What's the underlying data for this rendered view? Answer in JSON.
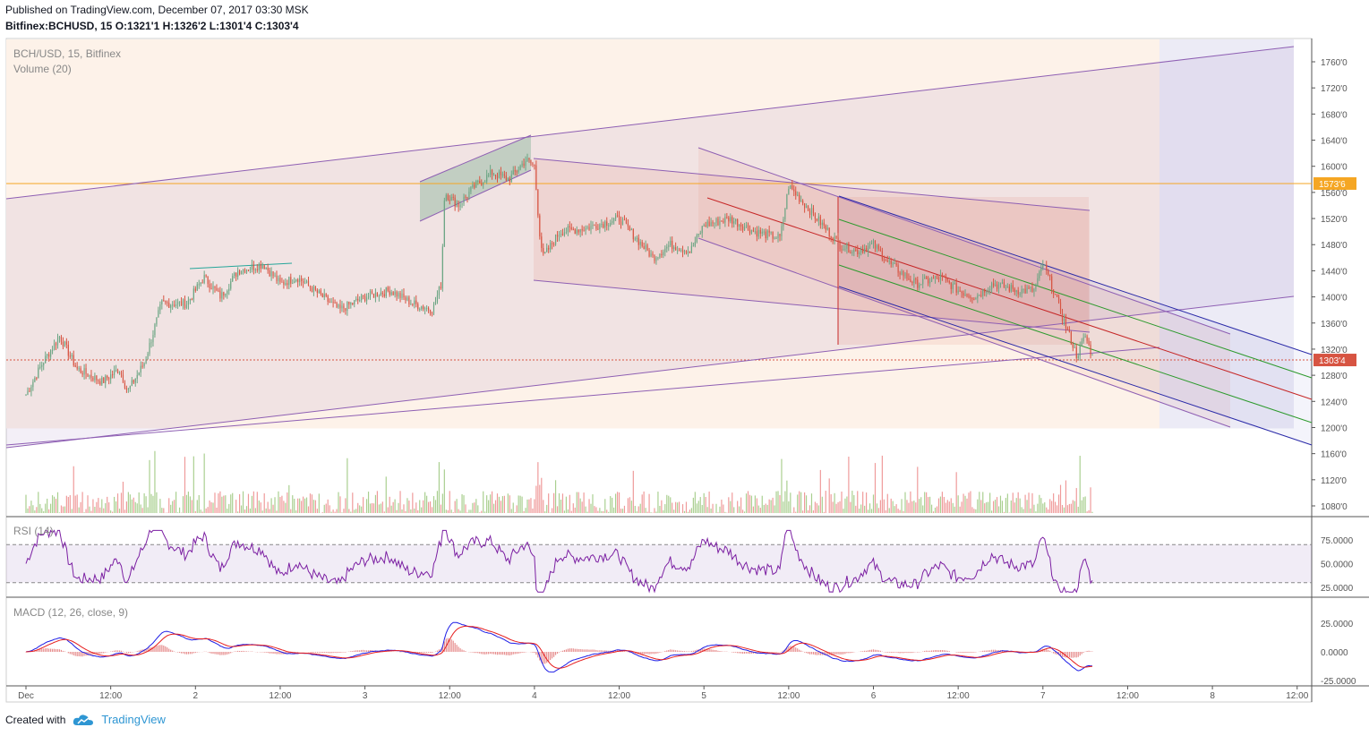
{
  "header": {
    "published": "Published on TradingView.com, December 07, 2017 03:30 MSK",
    "symbol": "Bitfinex:BCHUSD, 15",
    "ohlc": "O:1321'1 H:1326'2 L:1301'4 C:1303'4"
  },
  "legend": {
    "main": "BCH/USD, 15, Bitfinex",
    "volume": "Volume (20)",
    "rsi": "RSI (14)",
    "macd": "MACD (12, 26, close, 9)"
  },
  "footer": {
    "created_with": "Created with",
    "brand": "TradingView",
    "icon": "tradingview-cloud-icon"
  },
  "colors": {
    "up": "#6ba583",
    "down": "#d75442",
    "upVol": "#a9cf8f",
    "downVol": "#ef9a9a",
    "channel": "#8e5fb3",
    "orange": "#f5a623",
    "blueLine": "#2a2aa8",
    "redLine": "#c62828",
    "greenLine": "#2e9a2e",
    "rsi": "#7b1fa2",
    "macdFast": "#1e1ee6",
    "macdSignal": "#e61e1e"
  },
  "chart_data": [
    {
      "type": "candlestick",
      "title": "BCH/USD, 15, Bitfinex",
      "x_ticks": [
        "Dec",
        "12:00",
        "2",
        "12:00",
        "3",
        "12:00",
        "4",
        "12:00",
        "5",
        "12:00",
        "6",
        "12:00",
        "7",
        "12:00",
        "8",
        "12:00"
      ],
      "y_ticks": [
        "1760'0",
        "1720'0",
        "1680'0",
        "1640'0",
        "1600'0",
        "1560'0",
        "1520'0",
        "1480'0",
        "1440'0",
        "1400'0",
        "1360'0",
        "1320'0",
        "1280'0",
        "1240'0",
        "1200'0",
        "1160'0",
        "1120'0",
        "1080'0"
      ],
      "ylim": [
        1060,
        1780
      ],
      "price_labels": {
        "horizontal_level": "1573'6",
        "last_price": "1303'4"
      },
      "horizontal_level": 1573.6,
      "last_price": 1303.4,
      "anchors": [
        {
          "day": 0.0,
          "price": 1250
        },
        {
          "day": 0.1,
          "price": 1300
        },
        {
          "day": 0.2,
          "price": 1340
        },
        {
          "day": 0.3,
          "price": 1290
        },
        {
          "day": 0.45,
          "price": 1270
        },
        {
          "day": 0.55,
          "price": 1290
        },
        {
          "day": 0.6,
          "price": 1255
        },
        {
          "day": 0.7,
          "price": 1300
        },
        {
          "day": 0.8,
          "price": 1390
        },
        {
          "day": 0.95,
          "price": 1390
        },
        {
          "day": 1.05,
          "price": 1430
        },
        {
          "day": 1.15,
          "price": 1400
        },
        {
          "day": 1.25,
          "price": 1440
        },
        {
          "day": 1.4,
          "price": 1450
        },
        {
          "day": 1.5,
          "price": 1420
        },
        {
          "day": 1.6,
          "price": 1430
        },
        {
          "day": 1.7,
          "price": 1410
        },
        {
          "day": 1.85,
          "price": 1380
        },
        {
          "day": 2.0,
          "price": 1400
        },
        {
          "day": 2.15,
          "price": 1410
        },
        {
          "day": 2.28,
          "price": 1390
        },
        {
          "day": 2.4,
          "price": 1380
        },
        {
          "day": 2.45,
          "price": 1420
        },
        {
          "day": 2.47,
          "price": 1560
        },
        {
          "day": 2.55,
          "price": 1540
        },
        {
          "day": 2.65,
          "price": 1570
        },
        {
          "day": 2.75,
          "price": 1590
        },
        {
          "day": 2.85,
          "price": 1580
        },
        {
          "day": 2.95,
          "price": 1610
        },
        {
          "day": 3.0,
          "price": 1600
        },
        {
          "day": 3.03,
          "price": 1500
        },
        {
          "day": 3.05,
          "price": 1460
        },
        {
          "day": 3.15,
          "price": 1500
        },
        {
          "day": 3.3,
          "price": 1505
        },
        {
          "day": 3.5,
          "price": 1520
        },
        {
          "day": 3.6,
          "price": 1490
        },
        {
          "day": 3.7,
          "price": 1460
        },
        {
          "day": 3.8,
          "price": 1480
        },
        {
          "day": 3.92,
          "price": 1470
        },
        {
          "day": 4.0,
          "price": 1510
        },
        {
          "day": 4.15,
          "price": 1520
        },
        {
          "day": 4.3,
          "price": 1500
        },
        {
          "day": 4.45,
          "price": 1490
        },
        {
          "day": 4.5,
          "price": 1570
        },
        {
          "day": 4.6,
          "price": 1540
        },
        {
          "day": 4.7,
          "price": 1510
        },
        {
          "day": 4.8,
          "price": 1480
        },
        {
          "day": 4.9,
          "price": 1470
        },
        {
          "day": 5.0,
          "price": 1480
        },
        {
          "day": 5.1,
          "price": 1450
        },
        {
          "day": 5.25,
          "price": 1420
        },
        {
          "day": 5.4,
          "price": 1430
        },
        {
          "day": 5.5,
          "price": 1410
        },
        {
          "day": 5.6,
          "price": 1400
        },
        {
          "day": 5.7,
          "price": 1420
        },
        {
          "day": 5.85,
          "price": 1410
        },
        {
          "day": 5.95,
          "price": 1410
        },
        {
          "day": 6.0,
          "price": 1450
        },
        {
          "day": 6.05,
          "price": 1420
        },
        {
          "day": 6.1,
          "price": 1380
        },
        {
          "day": 6.2,
          "price": 1310
        },
        {
          "day": 6.25,
          "price": 1340
        },
        {
          "day": 6.3,
          "price": 1303
        }
      ],
      "x_range_days": [
        0,
        7.6
      ]
    },
    {
      "type": "bar",
      "title": "Volume (20)"
    },
    {
      "type": "line",
      "title": "RSI (14)",
      "y_ticks": [
        "75.0000",
        "50.0000",
        "25.0000"
      ],
      "ylim": [
        15,
        90
      ],
      "bands": [
        70,
        30
      ]
    },
    {
      "type": "line",
      "title": "MACD (12, 26, close, 9)",
      "y_ticks": [
        "25.0000",
        "0.0000",
        "-25.0000"
      ],
      "ylim": [
        -32,
        42
      ],
      "series": [
        {
          "values": []
        },
        {
          "values": []
        }
      ]
    }
  ]
}
